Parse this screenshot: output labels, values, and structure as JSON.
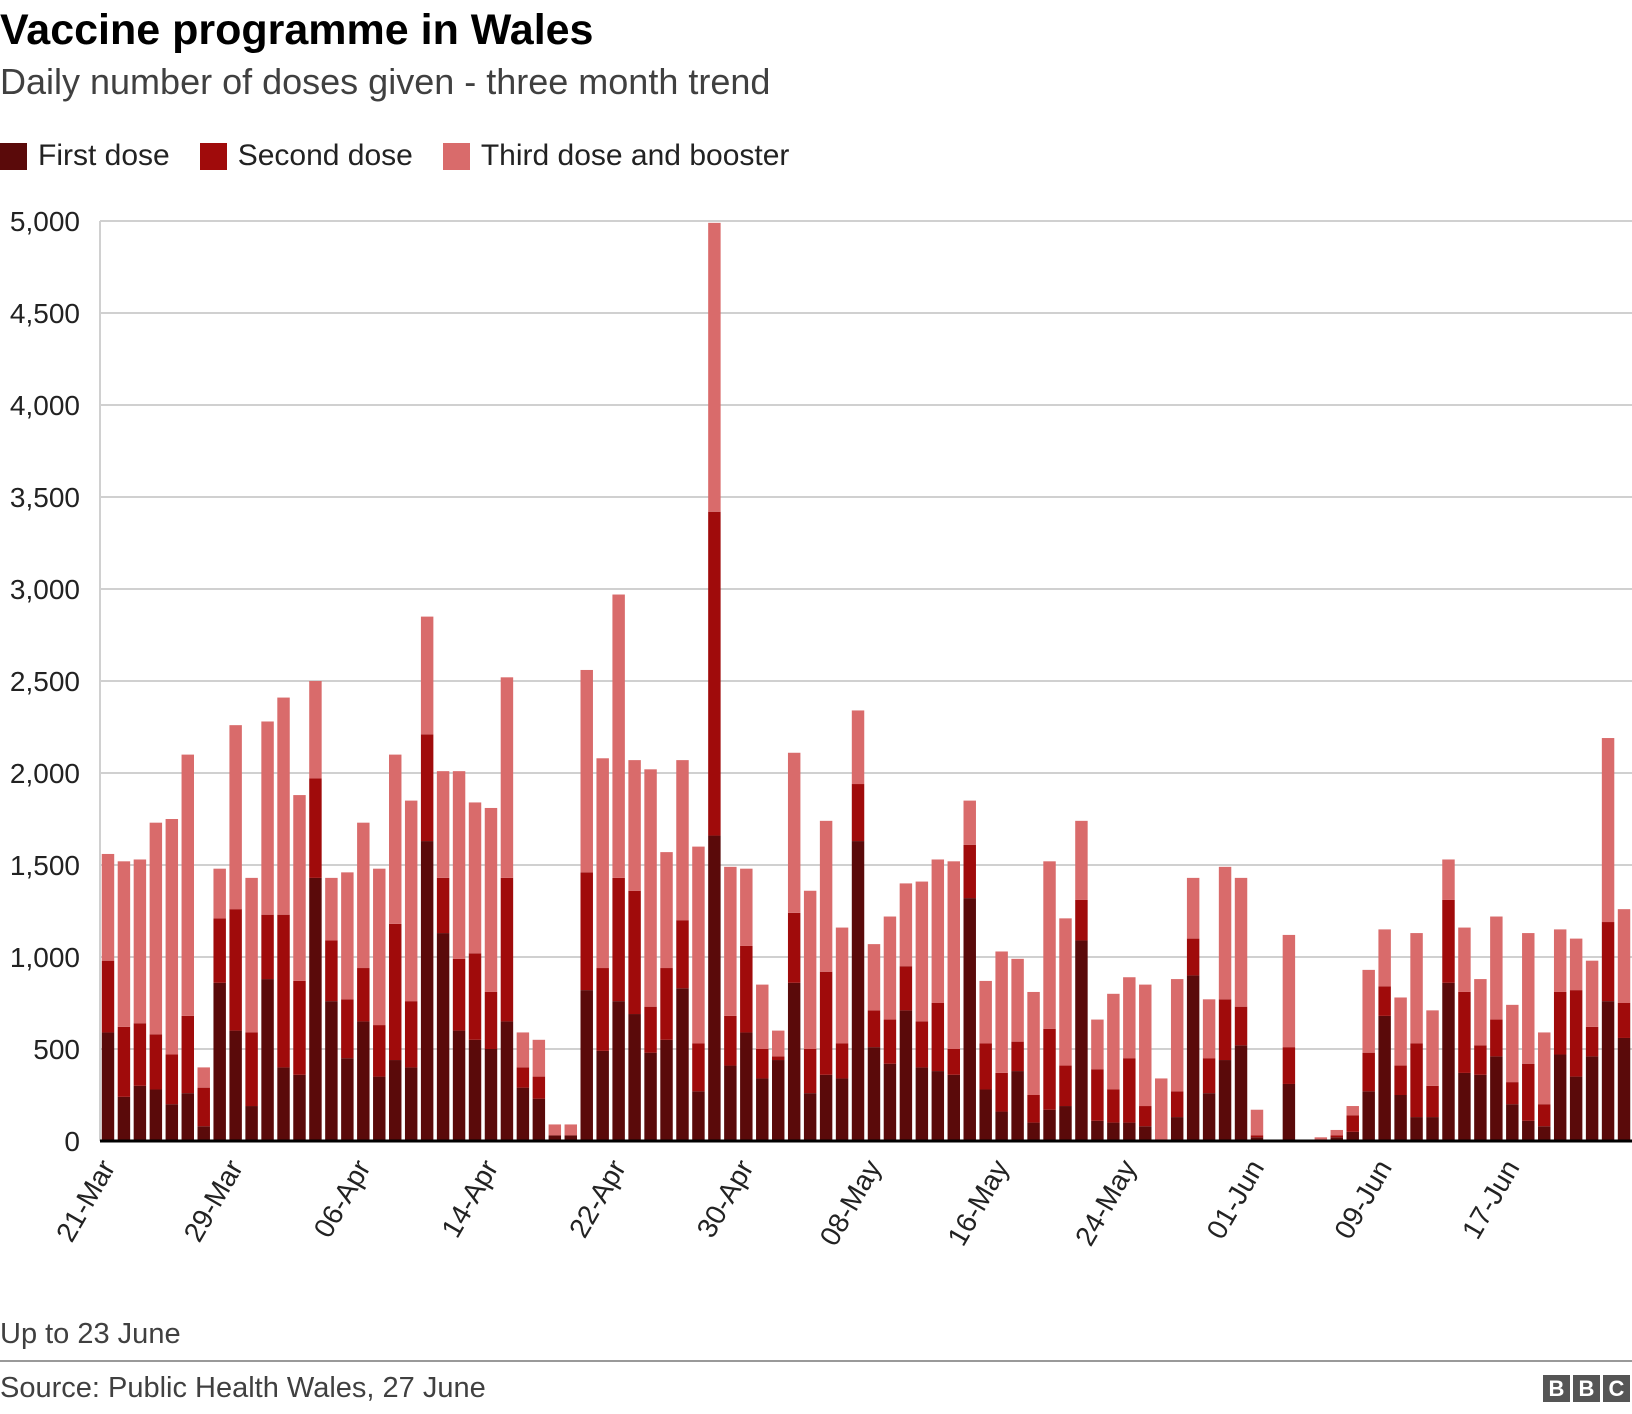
{
  "header": {
    "title": "Vaccine programme in Wales",
    "subtitle": "Daily number of doses given - three month trend"
  },
  "legend": [
    {
      "label": "First dose",
      "color": "#5a0a0a"
    },
    {
      "label": "Second dose",
      "color": "#a00b0b"
    },
    {
      "label": "Third dose and booster",
      "color": "#d96b6b"
    }
  ],
  "footer": {
    "note": "Up to 23 June",
    "source": "Source: Public Health Wales, 27 June",
    "logo_letters": [
      "B",
      "B",
      "C"
    ]
  },
  "chart_data": {
    "type": "bar",
    "stacked": true,
    "title": "Vaccine programme in Wales",
    "subtitle": "Daily number of doses given - three month trend",
    "xlabel": "",
    "ylabel": "",
    "ylim": [
      0,
      5000
    ],
    "yticks": [
      0,
      500,
      1000,
      1500,
      2000,
      2500,
      3000,
      3500,
      4000,
      4500,
      5000
    ],
    "ytick_labels": [
      "0",
      "500",
      "1,000",
      "1,500",
      "2,000",
      "2,500",
      "3,000",
      "3,500",
      "4,000",
      "4,500",
      "5,000"
    ],
    "grid": true,
    "legend_position": "top-left",
    "x_tick_labels": [
      {
        "index": 0,
        "label": "21-Mar"
      },
      {
        "index": 8,
        "label": "29-Mar"
      },
      {
        "index": 16,
        "label": "06-Apr"
      },
      {
        "index": 24,
        "label": "14-Apr"
      },
      {
        "index": 32,
        "label": "22-Apr"
      },
      {
        "index": 40,
        "label": "30-Apr"
      },
      {
        "index": 48,
        "label": "08-May"
      },
      {
        "index": 56,
        "label": "16-May"
      },
      {
        "index": 64,
        "label": "24-May"
      },
      {
        "index": 72,
        "label": "01-Jun"
      },
      {
        "index": 80,
        "label": "09-Jun"
      },
      {
        "index": 88,
        "label": "17-Jun"
      }
    ],
    "series": [
      {
        "name": "First dose",
        "color": "#5a0a0a",
        "values": [
          590,
          240,
          300,
          280,
          200,
          260,
          80,
          860,
          600,
          190,
          880,
          400,
          360,
          1430,
          760,
          450,
          650,
          350,
          440,
          400,
          1630,
          1130,
          600,
          550,
          500,
          650,
          290,
          230,
          30,
          30,
          820,
          490,
          760,
          690,
          480,
          550,
          830,
          270,
          1660,
          410,
          590,
          340,
          440,
          860,
          260,
          360,
          340,
          1630,
          510,
          420,
          710,
          400,
          380,
          360,
          1320,
          280,
          160,
          380,
          100,
          170,
          190,
          1090,
          110,
          100,
          100,
          80,
          0,
          130,
          900,
          260,
          440,
          520,
          20,
          0,
          310,
          0,
          0,
          20,
          50,
          270,
          680,
          250,
          130,
          130,
          860,
          370,
          360,
          460,
          200,
          110,
          80,
          470,
          350,
          460,
          760,
          560
        ]
      },
      {
        "name": "Second dose",
        "color": "#a00b0b",
        "values": [
          390,
          380,
          340,
          300,
          270,
          420,
          210,
          350,
          660,
          400,
          350,
          830,
          510,
          540,
          330,
          320,
          290,
          280,
          740,
          360,
          580,
          300,
          390,
          470,
          310,
          780,
          110,
          120,
          0,
          0,
          640,
          450,
          670,
          670,
          250,
          390,
          370,
          260,
          1760,
          270,
          470,
          160,
          20,
          380,
          240,
          560,
          190,
          310,
          200,
          240,
          240,
          250,
          370,
          140,
          290,
          250,
          210,
          160,
          150,
          440,
          220,
          220,
          280,
          180,
          350,
          110,
          0,
          140,
          200,
          190,
          330,
          210,
          10,
          0,
          200,
          0,
          0,
          10,
          90,
          210,
          160,
          160,
          400,
          170,
          450,
          440,
          160,
          200,
          120,
          310,
          120,
          340,
          470,
          160,
          430,
          190
        ]
      },
      {
        "name": "Third dose and booster",
        "color": "#d96b6b",
        "values": [
          580,
          900,
          890,
          1150,
          1280,
          1420,
          110,
          270,
          1000,
          840,
          1050,
          1180,
          1010,
          530,
          340,
          690,
          790,
          850,
          920,
          1090,
          640,
          580,
          1020,
          820,
          1000,
          1090,
          190,
          200,
          60,
          60,
          1100,
          1140,
          1540,
          710,
          1290,
          630,
          870,
          1070,
          1570,
          810,
          420,
          350,
          140,
          870,
          860,
          820,
          630,
          400,
          360,
          560,
          450,
          760,
          780,
          1020,
          240,
          340,
          660,
          450,
          560,
          910,
          800,
          430,
          270,
          520,
          440,
          660,
          340,
          610,
          330,
          320,
          720,
          700,
          140,
          0,
          610,
          0,
          20,
          30,
          50,
          450,
          310,
          370,
          600,
          410,
          220,
          350,
          360,
          560,
          420,
          710,
          390,
          340,
          280,
          360,
          1000,
          510
        ]
      }
    ]
  }
}
